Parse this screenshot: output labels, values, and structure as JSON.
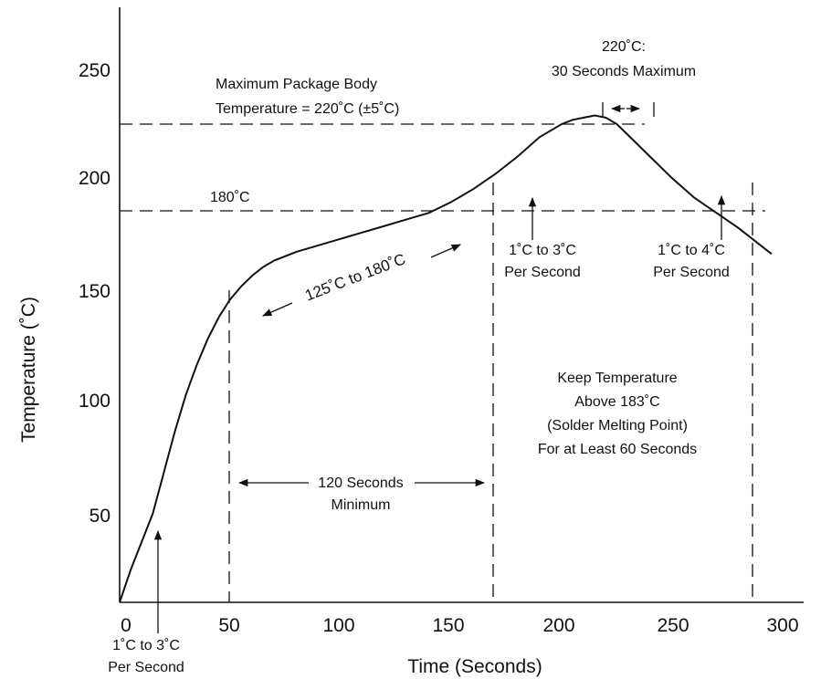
{
  "chart_data": {
    "type": "line",
    "xlabel": "Time (Seconds)",
    "ylabel": "Temperature (˚C)",
    "xlim": [
      0,
      300
    ],
    "ylim": [
      0,
      275
    ],
    "x_ticks": [
      "0",
      "50",
      "100",
      "150",
      "200",
      "250",
      "300"
    ],
    "y_ticks": [
      "50",
      "100",
      "150",
      "200",
      "250"
    ],
    "grid": false,
    "series": [
      {
        "points": [
          [
            0,
            0
          ],
          [
            5,
            15
          ],
          [
            10,
            28
          ],
          [
            15,
            41
          ],
          [
            20,
            60
          ],
          [
            25,
            79
          ],
          [
            30,
            96
          ],
          [
            35,
            110
          ],
          [
            40,
            122
          ],
          [
            45,
            132
          ],
          [
            50,
            140
          ],
          [
            55,
            146
          ],
          [
            60,
            151
          ],
          [
            65,
            155
          ],
          [
            70,
            158
          ],
          [
            75,
            160
          ],
          [
            80,
            162
          ],
          [
            90,
            165
          ],
          [
            100,
            168
          ],
          [
            110,
            171
          ],
          [
            120,
            174
          ],
          [
            130,
            177
          ],
          [
            140,
            180
          ],
          [
            150,
            185
          ],
          [
            160,
            191
          ],
          [
            170,
            198
          ],
          [
            180,
            206
          ],
          [
            190,
            215
          ],
          [
            200,
            221
          ],
          [
            205,
            223
          ],
          [
            210,
            224
          ],
          [
            215,
            225
          ],
          [
            220,
            224
          ],
          [
            225,
            221
          ],
          [
            230,
            216
          ],
          [
            240,
            206
          ],
          [
            250,
            196
          ],
          [
            260,
            187
          ],
          [
            270,
            180
          ],
          [
            280,
            173
          ],
          [
            290,
            165
          ],
          [
            295,
            161
          ]
        ]
      }
    ],
    "reference_lines": {
      "horizontal": [
        225,
        187
      ],
      "vertical": [
        50,
        161,
        283
      ]
    },
    "annotations": {
      "max_body_line1": "Maximum Package Body",
      "max_body_line2": "Temperature = 220˚C (±5˚C)",
      "peak_line1": "220˚C:",
      "peak_line2": "30 Seconds Maximum",
      "line_180": "180˚C",
      "range_125_180": "125˚C to 180˚C",
      "ramp_up_mid_line1": "1˚C to 3˚C",
      "ramp_up_mid_line2": "Per Second",
      "ramp_down_line1": "1˚C to 4˚C",
      "ramp_down_line2": "Per Second",
      "keep_line1": "Keep Temperature",
      "keep_line2": "Above 183˚C",
      "keep_line3": "(Solder Melting Point)",
      "keep_line4": "For at Least 60 Seconds",
      "min120_line1": "120 Seconds",
      "min120_line2": "Minimum",
      "ramp_start_line1": "1˚C to 3˚C",
      "ramp_start_line2": "Per Second"
    }
  }
}
